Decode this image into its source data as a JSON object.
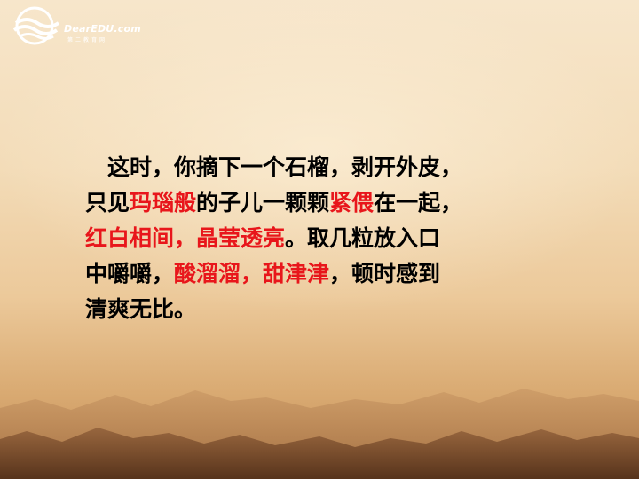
{
  "logo": {
    "icon": "fish-wave-logo-icon",
    "text": "DearEDU.com",
    "sub": "第二教育网"
  },
  "body": {
    "lines": [
      [
        {
          "t": "　这时，你摘下一个石榴，剥开外皮，",
          "red": false
        }
      ],
      [
        {
          "t": "只见",
          "red": false
        },
        {
          "t": "玛瑙般",
          "red": true
        },
        {
          "t": "的子儿一颗颗",
          "red": false
        },
        {
          "t": "紧偎",
          "red": true
        },
        {
          "t": "在一起，",
          "red": false
        }
      ],
      [
        {
          "t": "红白相间，晶莹透亮",
          "red": true
        },
        {
          "t": "。取几粒放入口",
          "red": false
        }
      ],
      [
        {
          "t": "中嚼嚼，",
          "red": false
        },
        {
          "t": "酸溜溜，甜津津",
          "red": true
        },
        {
          "t": "，顿时感到",
          "red": false
        }
      ],
      [
        {
          "t": "清爽无比。",
          "red": false
        }
      ]
    ]
  },
  "colors": {
    "highlight": "#e8161b",
    "text": "#000000",
    "background": "#f3dcb8"
  }
}
